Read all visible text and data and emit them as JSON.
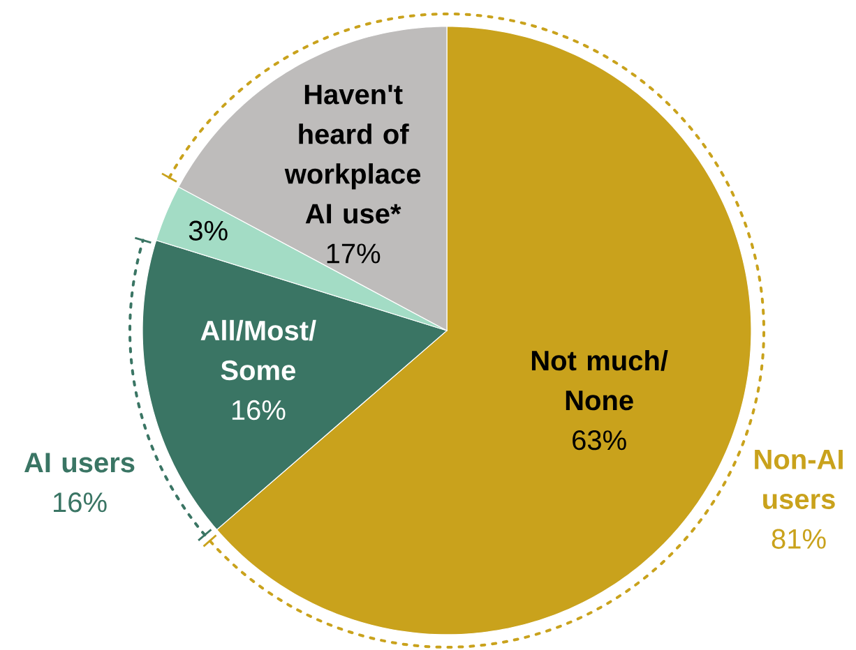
{
  "chart_data": {
    "type": "pie",
    "categories": [
      "Not much/None",
      "All/Most/Some",
      null,
      "Haven't heard of workplace AI use*"
    ],
    "values": [
      63,
      16,
      3,
      17
    ],
    "colors": [
      "#c9a21c",
      "#3a7564",
      "#a3dcc5",
      "#bebcbb"
    ],
    "value_labels": [
      "63%",
      "16%",
      "3%",
      "17%"
    ],
    "annotations": [
      "AI users",
      "16%",
      "Non-AI users",
      "81%"
    ]
  }
}
